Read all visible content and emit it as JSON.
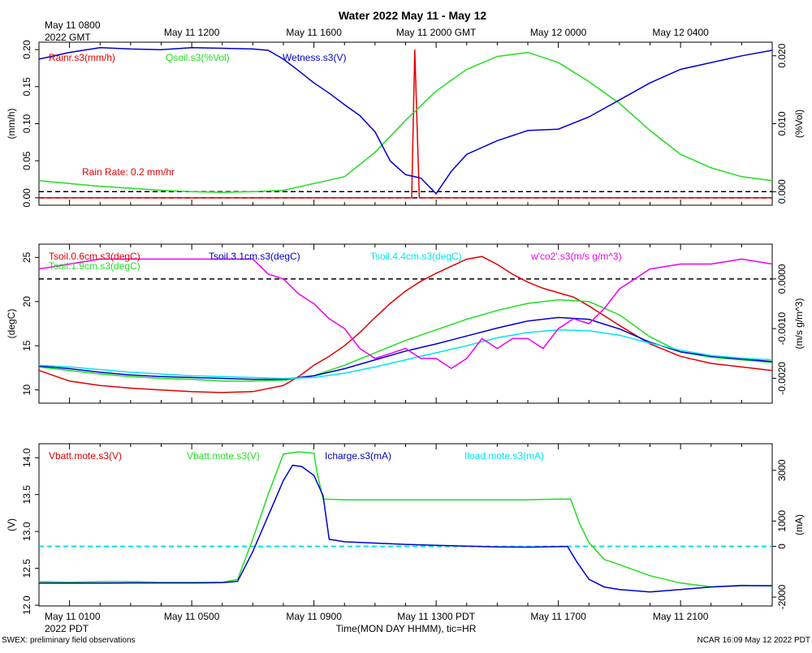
{
  "title": "Water 2022 May 11 - May 12",
  "footer_left": "SWEX: preliminary field observations",
  "footer_right": "NCAR 16:09 May 12 2022 PDT",
  "xlabel": "Time(MON DAY HHMM), tic=HR",
  "top_axis": {
    "start_line1": "May 11 0800",
    "start_line2": "2022 GMT",
    "ticks": [
      {
        "hour": 4,
        "label": "May 11 1200"
      },
      {
        "hour": 8,
        "label": "May 11 1600"
      },
      {
        "hour": 12,
        "label": "May 11 2000 GMT"
      },
      {
        "hour": 16,
        "label": "May 12 0000"
      },
      {
        "hour": 20,
        "label": "May 12 0400"
      }
    ]
  },
  "bottom_axis": {
    "start_line1": "May 11 0100",
    "start_line2": "2022 PDT",
    "ticks": [
      {
        "hour": 4,
        "label": "May 11 0500"
      },
      {
        "hour": 8,
        "label": "May 11 0900"
      },
      {
        "hour": 12,
        "label": "May 11 1300 PDT"
      },
      {
        "hour": 16,
        "label": "May 11 1700"
      },
      {
        "hour": 20,
        "label": "May 11 2100"
      }
    ]
  },
  "colors": {
    "red": "#e00000",
    "green": "#22dd22",
    "blue": "#0000cc",
    "cyan": "#00e5ee",
    "magenta": "#ee00ee",
    "black": "#000000"
  },
  "chart_data": [
    {
      "type": "line",
      "id": "panel1",
      "x_range": [
        -1,
        23
      ],
      "left_axis": {
        "label": "(mm/h)",
        "range": [
          -0.01,
          0.21
        ],
        "ticks": [
          0.0,
          0.05,
          0.1,
          0.15,
          0.2
        ],
        "tick_labels": [
          "0.00",
          "0.05",
          "0.10",
          "0.15",
          "0.20"
        ]
      },
      "right_axis": {
        "label": "(%Vol)",
        "range": [
          -0.002,
          0.022
        ],
        "ticks": [
          0.0,
          0.01,
          0.02
        ],
        "tick_labels": [
          "0.000",
          "0.010",
          "0.020"
        ]
      },
      "legend": [
        "Rainr.s3(mm/h)",
        "Qsoil.s3(%Vol)",
        "Wetness.s3(V)"
      ],
      "annotation": "Rain Rate: 0.2 mm/hr",
      "reference_lines": [
        {
          "axis": "left",
          "value": 0.0,
          "color": "black",
          "dashed": true
        },
        {
          "axis": "right",
          "value": 0.0,
          "color": "black",
          "dashed": true
        }
      ],
      "series": [
        {
          "name": "Rainr.s3(mm/h)",
          "color": "red",
          "axis": "left",
          "x": [
            -1,
            11,
            11.2,
            11.3,
            11.45,
            23
          ],
          "y": [
            0,
            0,
            0,
            0.2,
            0,
            0
          ]
        },
        {
          "name": "Qsoil.s3(%Vol)",
          "color": "green",
          "axis": "right",
          "x": [
            -1,
            0,
            1,
            2,
            3,
            4,
            5,
            6,
            7,
            8,
            9,
            10,
            11,
            12,
            13,
            14,
            15,
            16,
            17,
            18,
            19,
            20,
            21,
            22,
            23
          ],
          "y": [
            0.0016,
            0.0012,
            0.0008,
            0.0005,
            0.0002,
            0.0,
            -0.0001,
            0.0,
            0.0002,
            0.0012,
            0.0022,
            0.0058,
            0.0105,
            0.0148,
            0.018,
            0.0199,
            0.0205,
            0.019,
            0.0162,
            0.013,
            0.009,
            0.0055,
            0.0035,
            0.0022,
            0.0016
          ]
        },
        {
          "name": "Wetness.s3(V)",
          "color": "blue",
          "axis": "right",
          "x": [
            -1,
            0,
            1,
            2,
            3,
            4,
            5,
            6,
            6.5,
            7,
            7.5,
            8,
            8.5,
            9,
            9.5,
            10,
            10.5,
            11,
            11.5,
            12,
            12.5,
            13,
            14,
            15,
            16,
            17,
            18,
            19,
            20,
            21,
            22,
            23
          ],
          "y": [
            0.0195,
            0.0205,
            0.0212,
            0.021,
            0.0209,
            0.0212,
            0.0211,
            0.021,
            0.0208,
            0.0195,
            0.0178,
            0.016,
            0.0145,
            0.0128,
            0.0112,
            0.0088,
            0.0045,
            0.0025,
            0.002,
            -0.0003,
            0.003,
            0.0055,
            0.0075,
            0.009,
            0.0092,
            0.011,
            0.0135,
            0.016,
            0.018,
            0.019,
            0.02,
            0.0208
          ]
        }
      ]
    },
    {
      "type": "line",
      "id": "panel2",
      "x_range": [
        -1,
        23
      ],
      "left_axis": {
        "label": "(degC)",
        "range": [
          8.5,
          26.5
        ],
        "ticks": [
          10,
          15,
          20,
          25
        ],
        "tick_labels": [
          "10",
          "15",
          "20",
          "25"
        ]
      },
      "right_axis": {
        "label": "(m/s g/m^3)",
        "range": [
          -0.0025,
          0.0007
        ],
        "ticks": [
          0.0,
          -0.001,
          -0.002
        ],
        "tick_labels": [
          "0.0000",
          "-0.0010",
          "-0.0020"
        ]
      },
      "legend": [
        "Tsoil.0.6cm.s3(degC)",
        "Tsoil.1.9cm.s3(degC)",
        "Tsoil.3.1cm.s3(degC)",
        "Tsoil.4.4cm.s3(degC)",
        "w'co2'.s3(m/s g/m^3)"
      ],
      "reference_lines": [
        {
          "axis": "right",
          "value": 0.0,
          "color": "black",
          "dashed": true
        }
      ],
      "series": [
        {
          "name": "Tsoil.0.6cm.s3(degC)",
          "color": "red",
          "axis": "left",
          "x": [
            -1,
            0,
            1,
            2,
            3,
            4,
            5,
            6,
            7,
            7.5,
            8,
            8.5,
            9,
            9.5,
            10,
            10.5,
            11,
            11.5,
            12,
            12.5,
            13,
            13.5,
            14,
            14.5,
            15,
            15.5,
            16,
            16.5,
            17,
            18,
            19,
            20,
            21,
            22,
            23
          ],
          "y": [
            12.2,
            11.0,
            10.5,
            10.2,
            10.0,
            9.8,
            9.7,
            9.8,
            10.5,
            11.5,
            12.8,
            13.8,
            15.0,
            16.5,
            18.2,
            19.8,
            21.2,
            22.3,
            23.2,
            24.0,
            24.8,
            25.1,
            24.2,
            23.1,
            22.2,
            21.5,
            21.0,
            20.5,
            19.5,
            17.3,
            15.2,
            13.8,
            13.0,
            12.6,
            12.2
          ]
        },
        {
          "name": "Tsoil.1.9cm.s3(degC)",
          "color": "green",
          "axis": "left",
          "x": [
            -1,
            0,
            1,
            2,
            3,
            4,
            5,
            6,
            7,
            8,
            9,
            10,
            11,
            12,
            13,
            14,
            15,
            16,
            17,
            18,
            19,
            20,
            21,
            22,
            23
          ],
          "y": [
            12.6,
            12.2,
            11.8,
            11.5,
            11.3,
            11.2,
            11.0,
            11.0,
            11.1,
            11.6,
            12.8,
            14.2,
            15.6,
            16.8,
            18.0,
            19.0,
            19.8,
            20.2,
            20.0,
            18.5,
            16.0,
            14.3,
            13.7,
            13.4,
            13.1
          ]
        },
        {
          "name": "Tsoil.3.1cm.s3(degC)",
          "color": "blue",
          "axis": "left",
          "x": [
            -1,
            0,
            1,
            2,
            3,
            4,
            5,
            6,
            7,
            8,
            9,
            10,
            11,
            12,
            13,
            14,
            15,
            16,
            17,
            18,
            19,
            20,
            21,
            22,
            23
          ],
          "y": [
            12.7,
            12.4,
            12.0,
            11.7,
            11.5,
            11.4,
            11.3,
            11.2,
            11.2,
            11.6,
            12.4,
            13.4,
            14.4,
            15.2,
            16.1,
            17.0,
            17.8,
            18.2,
            18.0,
            16.9,
            15.4,
            14.3,
            13.8,
            13.5,
            13.2
          ]
        },
        {
          "name": "Tsoil.4.4cm.s3(degC)",
          "color": "cyan",
          "axis": "left",
          "x": [
            -1,
            0,
            1,
            2,
            3,
            4,
            5,
            6,
            7,
            8,
            9,
            10,
            11,
            12,
            13,
            14,
            15,
            16,
            17,
            18,
            19,
            20,
            21,
            22,
            23
          ],
          "y": [
            12.8,
            12.6,
            12.3,
            12.0,
            11.8,
            11.6,
            11.5,
            11.4,
            11.3,
            11.4,
            11.9,
            12.6,
            13.4,
            14.2,
            15.0,
            15.9,
            16.5,
            16.8,
            16.7,
            16.2,
            15.3,
            14.5,
            13.9,
            13.6,
            13.4
          ]
        },
        {
          "name": "w'co2'.s3(m/s g/m^3)",
          "color": "magenta",
          "axis": "right",
          "x": [
            -1,
            0,
            1,
            2,
            3,
            4,
            5,
            6,
            6.5,
            7,
            7.5,
            8,
            8.5,
            9,
            9.5,
            10,
            10.5,
            11,
            11.5,
            12,
            12.5,
            13,
            13.5,
            14,
            14.5,
            15,
            15.5,
            16,
            16.5,
            17,
            17.5,
            18,
            19,
            20,
            21,
            22,
            23
          ],
          "y": [
            0.0002,
            0.0003,
            0.0004,
            0.0004,
            0.0004,
            0.0004,
            0.0004,
            0.0004,
            0.0001,
            0.0,
            -0.0003,
            -0.0005,
            -0.0008,
            -0.001,
            -0.0014,
            -0.0016,
            -0.0015,
            -0.0014,
            -0.0016,
            -0.0016,
            -0.0018,
            -0.0016,
            -0.0012,
            -0.0014,
            -0.0012,
            -0.0012,
            -0.0014,
            -0.001,
            -0.0008,
            -0.0009,
            -0.0006,
            -0.0002,
            0.0002,
            0.0003,
            0.0003,
            0.0004,
            0.0003
          ]
        }
      ]
    },
    {
      "type": "line",
      "id": "panel3",
      "x_range": [
        -1,
        23
      ],
      "left_axis": {
        "label": "(V)",
        "range": [
          11.99,
          14.19
        ],
        "ticks": [
          12.0,
          12.5,
          13.0,
          13.5,
          14.0
        ],
        "tick_labels": [
          "12.0",
          "12.5",
          "13.0",
          "13.5",
          "14.0"
        ]
      },
      "right_axis": {
        "label": "(mA)",
        "range": [
          -2350,
          4050
        ],
        "ticks": [
          -2000,
          0,
          1000,
          3000
        ],
        "tick_labels": [
          "-2000",
          "0",
          "1000",
          "3000"
        ]
      },
      "legend": [
        "Vbatt.mote.s3(V)",
        "Vbatt.mote.s3(V)",
        "Icharge.s3(mA)",
        "Iload.mote.s3(mA)"
      ],
      "reference_lines": [
        {
          "axis": "right",
          "value": 0,
          "color": "black",
          "dashed": true
        },
        {
          "axis": "right",
          "value": 0,
          "color": "cyan",
          "dashed": true
        }
      ],
      "series": [
        {
          "name": "Vbatt.mote.s3(V)",
          "color": "green",
          "axis": "left",
          "x": [
            -1,
            0,
            1,
            2,
            3,
            4,
            5,
            5.5,
            6,
            6.5,
            7,
            7.5,
            8,
            8.1,
            8.3,
            9,
            10,
            11,
            12,
            13,
            14,
            15,
            16,
            16.4,
            16.7,
            17,
            17.5,
            18,
            19,
            20,
            21,
            22,
            23
          ],
          "y": [
            12.32,
            12.31,
            12.32,
            12.32,
            12.31,
            12.31,
            12.31,
            12.35,
            12.9,
            13.5,
            14.05,
            14.08,
            14.06,
            13.8,
            13.44,
            13.43,
            13.43,
            13.43,
            13.43,
            13.43,
            13.43,
            13.43,
            13.44,
            13.44,
            13.1,
            12.85,
            12.62,
            12.55,
            12.4,
            12.3,
            12.25,
            12.27,
            12.26
          ]
        },
        {
          "name": "Icharge.s3(mA)",
          "color": "blue",
          "axis": "right",
          "x": [
            -1,
            0,
            1,
            2,
            3,
            4,
            5,
            5.5,
            6,
            6.5,
            7,
            7.3,
            7.6,
            8,
            8.3,
            8.5,
            9,
            10,
            11,
            12,
            13,
            14,
            15,
            16,
            16.3,
            16.6,
            17,
            17.5,
            18,
            19,
            20,
            21,
            22,
            23
          ],
          "y": [
            -1450,
            -1450,
            -1450,
            -1440,
            -1440,
            -1440,
            -1430,
            -1380,
            -200,
            1200,
            2600,
            3200,
            3150,
            2800,
            2000,
            280,
            180,
            130,
            80,
            40,
            10,
            -20,
            -30,
            -10,
            0,
            -600,
            -1300,
            -1600,
            -1700,
            -1800,
            -1700,
            -1600,
            -1550,
            -1550
          ]
        }
      ]
    }
  ]
}
